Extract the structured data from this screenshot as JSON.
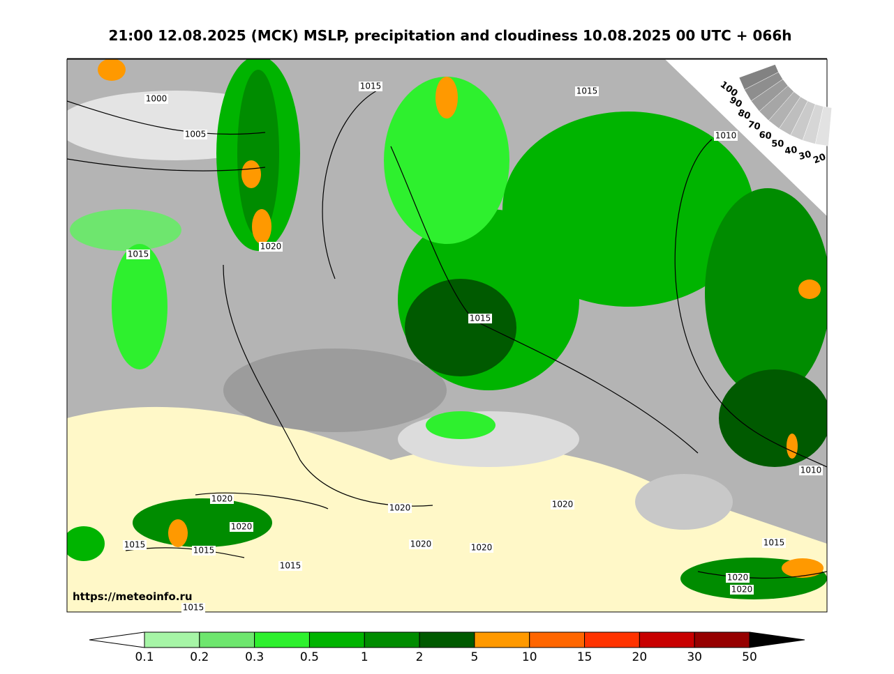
{
  "header": {
    "title": "21:00 12.08.2025 (MCK) MSLP, precipitation and cloudiness 10.08.2025 00 UTC + 066h"
  },
  "map": {
    "isobar_labels": [
      1000,
      1005,
      1015,
      1015,
      1010,
      1015,
      1020,
      1015,
      1010,
      1020,
      1020,
      1020,
      1020,
      1015,
      1015,
      1020,
      1020,
      1015,
      1015,
      1020,
      1020,
      1015
    ],
    "source_url": "https://meteoinfo.ru"
  },
  "cloudiness_scale": {
    "labels": [
      100,
      90,
      80,
      70,
      60,
      50,
      40,
      30,
      20
    ]
  },
  "precipitation_scale": {
    "ticks": [
      0.1,
      0.2,
      0.3,
      0.5,
      1,
      2,
      5,
      10,
      15,
      20,
      30,
      50
    ],
    "colors": [
      "#a6f5a6",
      "#6ee66e",
      "#2ef02e",
      "#00b400",
      "#008c00",
      "#005a00",
      "#ff9900",
      "#ff6600",
      "#ff3300",
      "#c80000",
      "#960000"
    ]
  }
}
